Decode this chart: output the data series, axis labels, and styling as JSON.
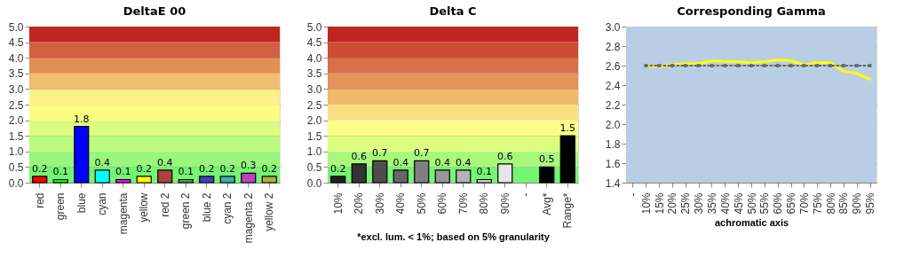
{
  "chart_data": [
    {
      "type": "bar",
      "title": "DeltaE 00",
      "categories": [
        "red",
        "green",
        "blue",
        "cyan",
        "magenta",
        "yellow",
        "red 2",
        "green 2",
        "blue 2",
        "cyan 2",
        "magenta 2",
        "yellow 2"
      ],
      "values": [
        0.2,
        0.1,
        1.8,
        0.4,
        0.1,
        0.2,
        0.4,
        0.1,
        0.2,
        0.2,
        0.3,
        0.2
      ],
      "colors": [
        "#ff0000",
        "#00ff00",
        "#0000ff",
        "#00ffff",
        "#ff00ff",
        "#ffff00",
        "#b04040",
        "#40a040",
        "#4040c0",
        "#40b0b0",
        "#c040c0",
        "#b0b040"
      ],
      "data_labels": true,
      "ylim": [
        0,
        5
      ],
      "yticks": [
        {
          "value": 0,
          "label": "0.0"
        },
        0.5,
        {
          "value": 1,
          "label": "1.0"
        },
        1.5,
        {
          "value": 2,
          "label": "2.0"
        },
        2.5,
        {
          "value": 3,
          "label": "3.0"
        },
        3.5,
        {
          "value": 4,
          "label": "4.0"
        },
        4.5,
        {
          "value": 5,
          "label": "5.0"
        }
      ],
      "grid": "y",
      "legend": false,
      "bands": [
        {
          "axis": "y",
          "from": 0,
          "to": 0.5,
          "color": "#74f574"
        },
        {
          "axis": "y",
          "from": 0.5,
          "to": 1,
          "color": "#98f77c"
        },
        {
          "axis": "y",
          "from": 1,
          "to": 1.5,
          "color": "#bafb80"
        },
        {
          "axis": "y",
          "from": 1.5,
          "to": 2,
          "color": "#dcfc80"
        },
        {
          "axis": "y",
          "from": 2,
          "to": 2.5,
          "color": "#fcfc80"
        },
        {
          "axis": "y",
          "from": 2.5,
          "to": 3,
          "color": "#fcf088"
        },
        {
          "axis": "y",
          "from": 3,
          "to": 3.5,
          "color": "#f0c070"
        },
        {
          "axis": "y",
          "from": 3.5,
          "to": 4,
          "color": "#e09050"
        },
        {
          "axis": "y",
          "from": 4,
          "to": 4.5,
          "color": "#d06040"
        },
        {
          "axis": "y",
          "from": 4.5,
          "to": 5,
          "color": "#c02520"
        }
      ]
    },
    {
      "type": "bar",
      "title": "Delta C",
      "categories": [
        "10%",
        "20%",
        "30%",
        "40%",
        "50%",
        "60%",
        "70%",
        "80%",
        "90%",
        "-",
        "Avg*",
        "Range*"
      ],
      "values": [
        0.2,
        0.6,
        0.7,
        0.4,
        0.7,
        0.4,
        0.4,
        0.1,
        0.6,
        null,
        0.5,
        1.5
      ],
      "colors": [
        "#202020",
        "#333333",
        "#4d4d4d",
        "#666666",
        "#808080",
        "#999999",
        "#b3b3b3",
        "#cccccc",
        "#e6e6e6",
        null,
        "#000000",
        "#000000"
      ],
      "data_labels": true,
      "ylim": [
        0,
        5
      ],
      "yticks": [
        {
          "value": 0,
          "label": "0.0"
        },
        0.5,
        {
          "value": 1,
          "label": "1.0"
        },
        1.5,
        {
          "value": 2,
          "label": "2.0"
        },
        2.5,
        {
          "value": 3,
          "label": "3.0"
        },
        3.5,
        {
          "value": 4,
          "label": "4.0"
        },
        4.5,
        {
          "value": 5,
          "label": "5.0"
        }
      ],
      "grid": "y",
      "legend": false,
      "annotations": [
        "*excl. lum. < 1%; based on 5% granularity"
      ],
      "bands": [
        {
          "axis": "y",
          "from": 0,
          "to": 0.5,
          "color": "#74f574"
        },
        {
          "axis": "y",
          "from": 0.5,
          "to": 1,
          "color": "#a8f87c"
        },
        {
          "axis": "y",
          "from": 1,
          "to": 1.5,
          "color": "#dcfc80"
        },
        {
          "axis": "y",
          "from": 1.5,
          "to": 2,
          "color": "#fcfc88"
        },
        {
          "axis": "y",
          "from": 2,
          "to": 2.5,
          "color": "#f8e080"
        },
        {
          "axis": "y",
          "from": 2.5,
          "to": 3,
          "color": "#f0b868"
        },
        {
          "axis": "y",
          "from": 3,
          "to": 3.5,
          "color": "#e49458"
        },
        {
          "axis": "y",
          "from": 3.5,
          "to": 4,
          "color": "#d87048"
        },
        {
          "axis": "y",
          "from": 4,
          "to": 4.5,
          "color": "#cc4c34"
        },
        {
          "axis": "y",
          "from": 4.5,
          "to": 5,
          "color": "#c02520"
        }
      ]
    },
    {
      "type": "line",
      "title": "Corresponding Gamma",
      "xlabel": "achromatic axis",
      "categories": [
        "-",
        "10%",
        "15%",
        "20%",
        "25%",
        "30%",
        "35%",
        "40%",
        "45%",
        "50%",
        "55%",
        "60%",
        "65%",
        "70%",
        "75%",
        "80%",
        "85%",
        "90%",
        "95%"
      ],
      "series": [
        {
          "color": "#ffff00",
          "line_style": "solid",
          "marker": "none",
          "values": [
            null,
            2.6,
            2.59,
            2.61,
            2.62,
            2.62,
            2.65,
            2.64,
            2.64,
            2.63,
            2.64,
            2.66,
            2.65,
            2.61,
            2.63,
            2.63,
            2.54,
            2.52,
            2.46
          ]
        },
        {
          "color": "#666666",
          "line_style": "dotted",
          "marker": "square",
          "values": [
            null,
            2.6,
            2.6,
            2.6,
            2.6,
            2.6,
            2.6,
            2.6,
            2.6,
            2.6,
            2.6,
            2.6,
            2.6,
            2.6,
            2.6,
            2.6,
            2.6,
            2.6,
            2.6
          ]
        }
      ],
      "ylim": [
        1.4,
        3.0
      ],
      "yticks": [
        1.4,
        1.6,
        1.8,
        {
          "value": 2,
          "label": "2.0"
        },
        2.2,
        2.4,
        2.6,
        2.8,
        {
          "value": 3,
          "label": "3.0"
        }
      ],
      "grid": true,
      "legend": false
    }
  ]
}
